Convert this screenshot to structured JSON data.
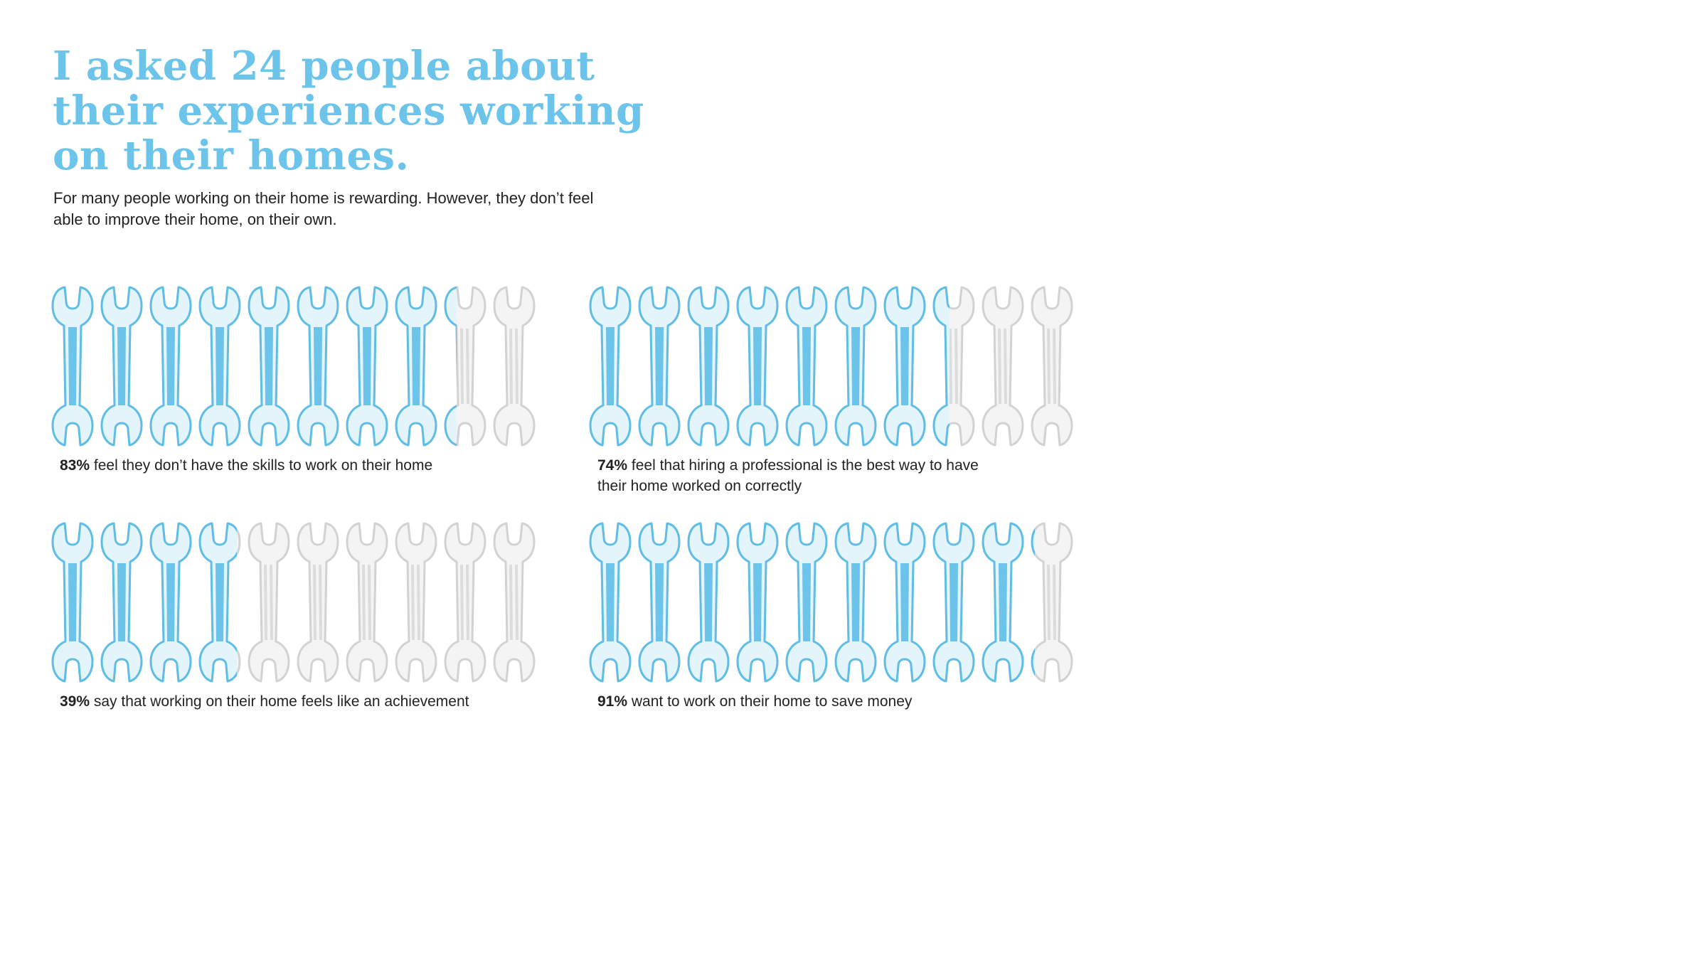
{
  "header": {
    "title": "I asked 24 people about their experiences working on their homes.",
    "subtitle": "For many people working on their home is rewarding. However, they don’t feel able to improve their home, on their own."
  },
  "colors": {
    "accent": "#6cc4ea",
    "empty": "#dcdcdc",
    "accent_outline": "#5fbde6",
    "empty_outline": "#d2d2d2"
  },
  "icon": "wrench-icon",
  "chart_data": [
    {
      "type": "pictograph",
      "icon_count": 10,
      "value_percent": 83,
      "percent_label": "83%",
      "text": "feel they don’t have the skills to work on their home"
    },
    {
      "type": "pictograph",
      "icon_count": 10,
      "value_percent": 74,
      "percent_label": "74%",
      "text": "feel that hiring a professional is the best way to have their home worked on correctly"
    },
    {
      "type": "pictograph",
      "icon_count": 10,
      "value_percent": 39,
      "percent_label": "39%",
      "text": "say that working on their home feels like an achievement"
    },
    {
      "type": "pictograph",
      "icon_count": 10,
      "value_percent": 91,
      "percent_label": "91%",
      "text": "want to work on their home to save money"
    }
  ]
}
